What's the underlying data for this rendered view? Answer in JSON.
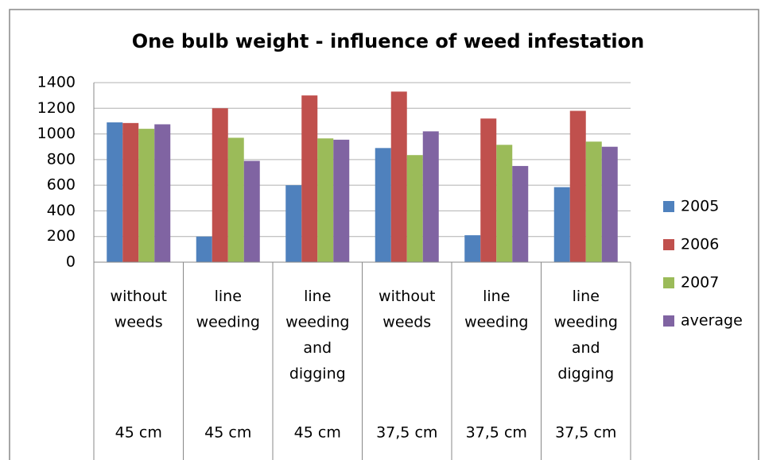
{
  "chart_data": {
    "type": "bar",
    "title": "One bulb weight - influence of weed infestation",
    "categories": [
      "without weeds",
      "line weeding",
      "line weeding and digging",
      "without weeds",
      "line weeding",
      "line weeding and digging"
    ],
    "subcategories": [
      "45 cm",
      "45 cm",
      "45 cm",
      "37,5 cm",
      "37,5 cm",
      "37,5 cm"
    ],
    "series": [
      {
        "name": "2005",
        "color": "#4f81bd",
        "values": [
          1090,
          200,
          600,
          890,
          210,
          585
        ]
      },
      {
        "name": "2006",
        "color": "#c0504d",
        "values": [
          1085,
          1200,
          1300,
          1330,
          1120,
          1180
        ]
      },
      {
        "name": "2007",
        "color": "#9bbb59",
        "values": [
          1040,
          970,
          965,
          835,
          915,
          940
        ]
      },
      {
        "name": "average",
        "color": "#8064a2",
        "values": [
          1075,
          790,
          955,
          1020,
          750,
          900
        ]
      }
    ],
    "ylim": [
      0,
      1400
    ],
    "yticks": [
      0,
      200,
      400,
      600,
      800,
      1000,
      1200,
      1400
    ],
    "grid": true,
    "legend": "right"
  }
}
